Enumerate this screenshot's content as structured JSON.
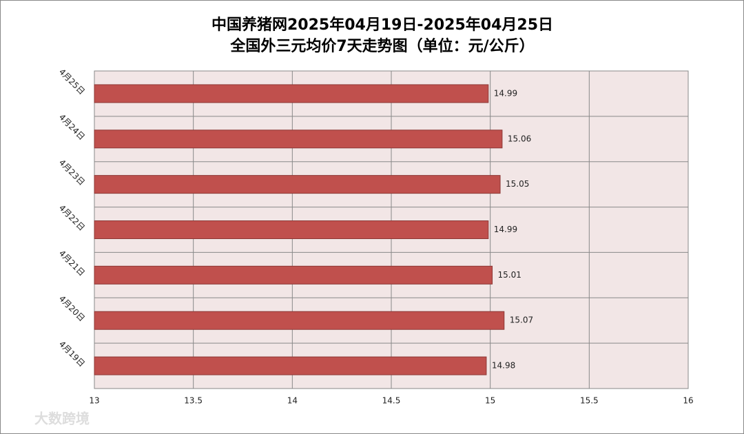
{
  "chart_data": {
    "type": "hbar",
    "title": "中国养猪网2025年04月19日-2025年04月25日",
    "subtitle": "全国外三元均价7天走势图（单位：元/公斤）",
    "categories": [
      "4月25日",
      "4月24日",
      "4月23日",
      "4月22日",
      "4月21日",
      "4月20日",
      "4月19日"
    ],
    "values": [
      14.99,
      15.06,
      15.05,
      14.99,
      15.01,
      15.07,
      14.98
    ],
    "color": "#c0504d",
    "xlim": [
      13,
      16
    ],
    "xticks": [
      13,
      13.5,
      14,
      14.5,
      15,
      15.5,
      16
    ],
    "grid": true
  },
  "watermark": "大数跨境"
}
